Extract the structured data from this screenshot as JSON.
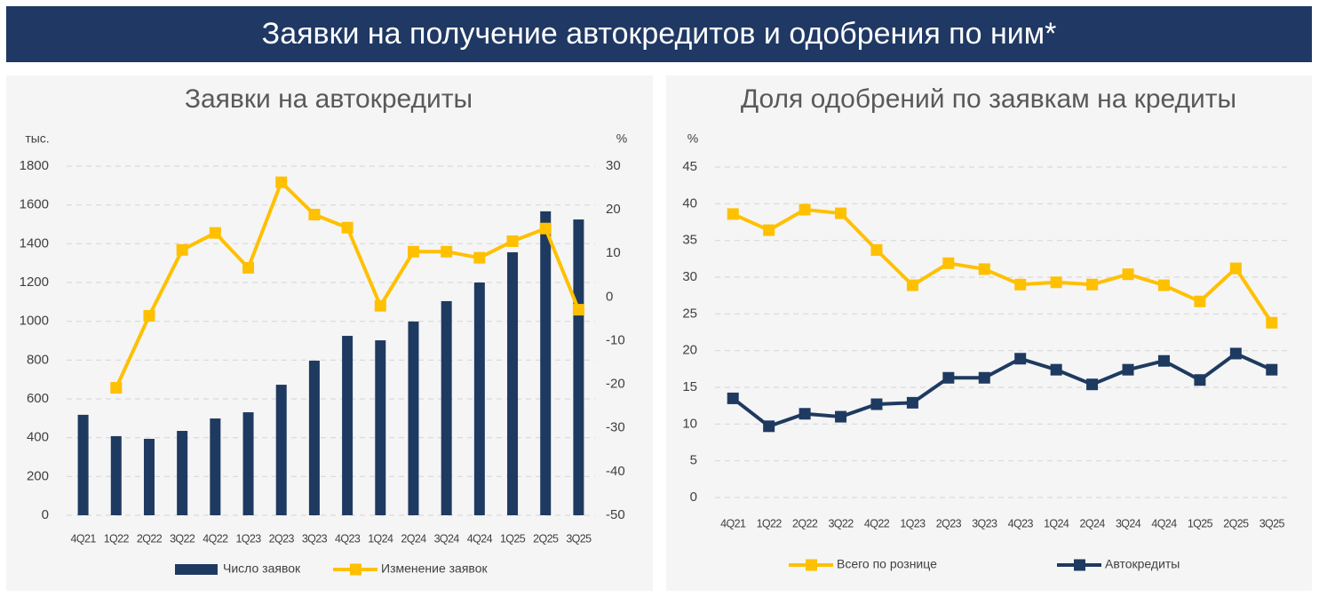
{
  "title": "Заявки на получение автокредитов и одобрения по ним*",
  "chart_data": [
    {
      "type": "bar",
      "title": "Заявки на автокредиты",
      "y_unit": "тыс.",
      "y2_unit": "%",
      "categories": [
        "4Q21",
        "1Q22",
        "2Q22",
        "3Q22",
        "4Q22",
        "1Q23",
        "2Q23",
        "3Q23",
        "4Q23",
        "1Q24",
        "2Q24",
        "3Q24",
        "4Q24",
        "1Q25",
        "2Q25",
        "3Q25"
      ],
      "series": [
        {
          "name": "Число заявок",
          "type": "bar",
          "color": "#1f3a60",
          "values": [
            518,
            408,
            394,
            435,
            499,
            531,
            673,
            797,
            925,
            902,
            999,
            1104,
            1200,
            1356,
            1567,
            1525
          ]
        },
        {
          "name": "Изменение заявок",
          "type": "line",
          "axis": "y2",
          "color": "#ffc000",
          "values": [
            null,
            -20.8,
            -4.3,
            10.8,
            14.7,
            6.7,
            26.3,
            18.9,
            15.9,
            -2,
            10.4,
            10.4,
            9,
            12.8,
            15.7,
            -2.9
          ]
        }
      ],
      "ylim": [
        0,
        1800
      ],
      "yticks": [
        0,
        200,
        400,
        600,
        800,
        1000,
        1200,
        1400,
        1600,
        1800
      ],
      "y2lim": [
        -50,
        30
      ],
      "y2ticks": [
        -50,
        -40,
        -30,
        -20,
        -10,
        0,
        10,
        20,
        30
      ],
      "grid": true,
      "legend": "bottom"
    },
    {
      "type": "line",
      "title": "Доля одобрений по заявкам на кредиты",
      "y_unit": "%",
      "categories": [
        "4Q21",
        "1Q22",
        "2Q22",
        "3Q22",
        "4Q22",
        "1Q23",
        "2Q23",
        "3Q23",
        "4Q23",
        "1Q24",
        "2Q24",
        "3Q24",
        "4Q24",
        "1Q25",
        "2Q25",
        "3Q25"
      ],
      "series": [
        {
          "name": "Всего по рознице",
          "color": "#ffc000",
          "values": [
            38.6,
            36.4,
            39.2,
            38.7,
            33.7,
            28.9,
            31.9,
            31.1,
            29.0,
            29.3,
            29.0,
            30.4,
            28.9,
            26.7,
            31.2,
            23.8
          ]
        },
        {
          "name": "Автокредиты",
          "color": "#1f3a60",
          "values": [
            13.5,
            9.7,
            11.4,
            11.0,
            12.7,
            12.9,
            16.3,
            16.3,
            18.9,
            17.4,
            15.4,
            17.4,
            18.6,
            16.0,
            19.6,
            17.4
          ]
        }
      ],
      "ylim": [
        0,
        45
      ],
      "yticks": [
        0,
        5,
        10,
        15,
        20,
        25,
        30,
        35,
        40,
        45
      ],
      "grid": true,
      "legend": "bottom"
    }
  ]
}
